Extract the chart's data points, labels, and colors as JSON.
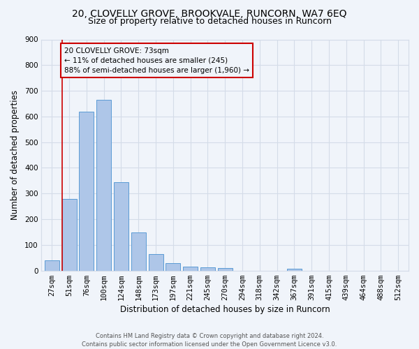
{
  "title_line1": "20, CLOVELLY GROVE, BROOKVALE, RUNCORN, WA7 6EQ",
  "title_line2": "Size of property relative to detached houses in Runcorn",
  "xlabel": "Distribution of detached houses by size in Runcorn",
  "ylabel": "Number of detached properties",
  "bar_labels": [
    "27sqm",
    "51sqm",
    "76sqm",
    "100sqm",
    "124sqm",
    "148sqm",
    "173sqm",
    "197sqm",
    "221sqm",
    "245sqm",
    "270sqm",
    "294sqm",
    "318sqm",
    "342sqm",
    "367sqm",
    "391sqm",
    "415sqm",
    "439sqm",
    "464sqm",
    "488sqm",
    "512sqm"
  ],
  "bar_values": [
    40,
    280,
    620,
    665,
    345,
    148,
    65,
    28,
    15,
    12,
    10,
    0,
    0,
    0,
    8,
    0,
    0,
    0,
    0,
    0,
    0
  ],
  "bar_color": "#aec6e8",
  "bar_edge_color": "#5b9bd5",
  "grid_color": "#d4dce8",
  "annotation_box_text": "20 CLOVELLY GROVE: 73sqm\n← 11% of detached houses are smaller (245)\n88% of semi-detached houses are larger (1,960) →",
  "annotation_box_color": "#cc0000",
  "vline_color": "#cc0000",
  "ylim": [
    0,
    900
  ],
  "yticks": [
    0,
    100,
    200,
    300,
    400,
    500,
    600,
    700,
    800,
    900
  ],
  "footnote": "Contains HM Land Registry data © Crown copyright and database right 2024.\nContains public sector information licensed under the Open Government Licence v3.0.",
  "bg_color": "#f0f4fa",
  "title_fontsize": 10,
  "subtitle_fontsize": 9,
  "axis_label_fontsize": 8.5,
  "tick_fontsize": 7.5,
  "annot_fontsize": 7.5
}
